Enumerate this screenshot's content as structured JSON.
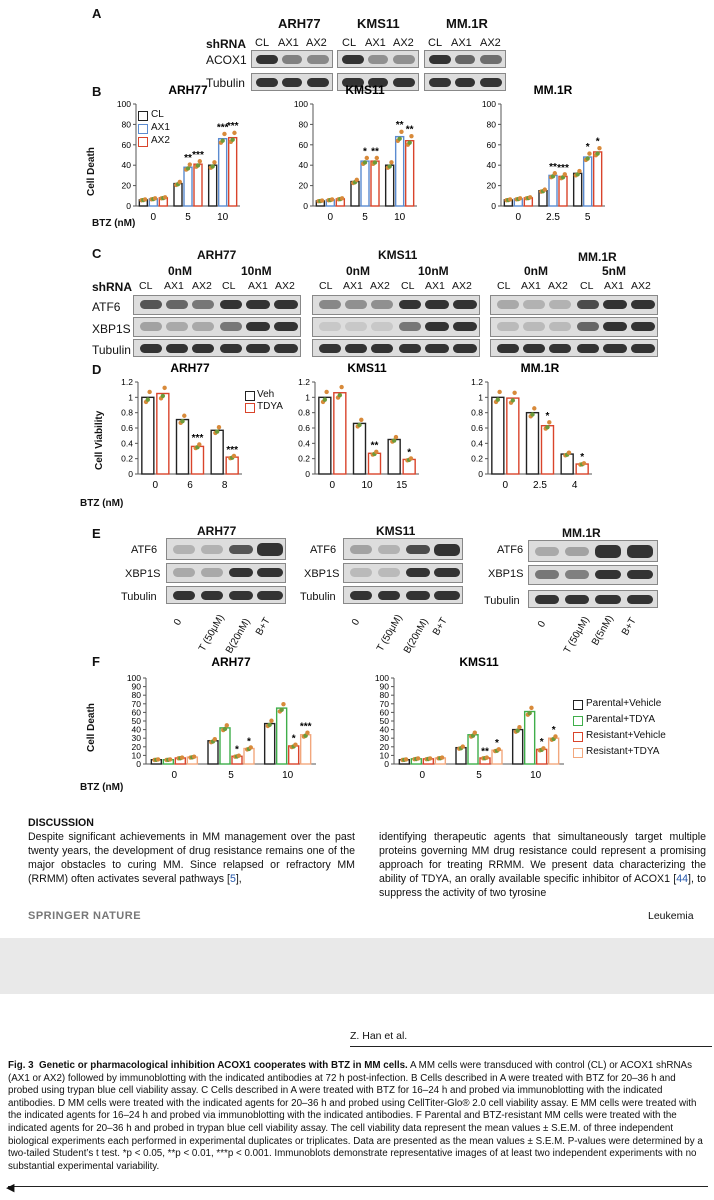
{
  "panelA": {
    "letter": "A",
    "cells": [
      "ARH77",
      "KMS11",
      "MM.1R"
    ],
    "shrna": "shRNA",
    "lanes": [
      "CL",
      "AX1",
      "AX2"
    ],
    "rows": [
      "ACOX1",
      "Tubulin"
    ]
  },
  "panelB": {
    "letter": "B",
    "xlabel": "BTZ (nM)",
    "ylabel": "Cell Death",
    "legend": [
      "CL",
      "AX1",
      "AX2"
    ]
  },
  "panelC": {
    "letter": "C",
    "cells": [
      "ARH77",
      "KMS11",
      "MM.1R"
    ],
    "shrna": "shRNA",
    "lanes": [
      "CL",
      "AX1",
      "AX2",
      "CL",
      "AX1",
      "AX2"
    ],
    "conc": [
      [
        "0nM",
        "10nM"
      ],
      [
        "0nM",
        "10nM"
      ],
      [
        "0nM",
        "5nM"
      ]
    ],
    "rows": [
      "ATF6",
      "XBP1S",
      "Tubulin"
    ]
  },
  "panelD": {
    "letter": "D",
    "xlabel": "BTZ (nM)",
    "ylabel": "Cell Viability",
    "legend": [
      "Veh",
      "TDYA"
    ]
  },
  "panelE": {
    "letter": "E",
    "cells": [
      "ARH77",
      "KMS11",
      "MM.1R"
    ],
    "rows": [
      "ATF6",
      "XBP1S",
      "Tubulin"
    ],
    "lanes": [
      [
        "0",
        "T (50μM)",
        "B(20nM)",
        "B+T"
      ],
      [
        "0",
        "T (50μM)",
        "B(20nM)",
        "B+T"
      ],
      [
        "0",
        "T (50μM)",
        "B(5nM)",
        "B+T"
      ]
    ]
  },
  "panelF": {
    "letter": "F",
    "xlabel": "BTZ (nM)",
    "ylabel": "Cell Death",
    "legend": [
      "Parental+Vehicle",
      "Parental+TDYA",
      "Resistant+Vehicle",
      "Resistant+TDYA"
    ]
  },
  "colors": {
    "black": "#222222",
    "blue": "#5b8bd0",
    "red": "#d9442b",
    "green": "#3fae4a",
    "peach": "#f2a77d",
    "dotGreen": "#6b9a3a",
    "dotOrange": "#d88a3a"
  },
  "chart_data": [
    {
      "id": "B-ARH77",
      "type": "bar",
      "title": "ARH77",
      "categories": [
        "0",
        "5",
        "10"
      ],
      "ylim": [
        0,
        100
      ],
      "yticks": [
        "0",
        "20",
        "40",
        "60",
        "80",
        "100"
      ],
      "series": [
        {
          "name": "CL",
          "values": [
            6,
            22,
            40
          ]
        },
        {
          "name": "AX1",
          "values": [
            7,
            38,
            66
          ]
        },
        {
          "name": "AX2",
          "values": [
            8,
            41,
            67
          ]
        }
      ],
      "labels": [
        [
          "",
          ""
        ],
        [
          "**",
          "***"
        ],
        [
          "***",
          "***"
        ]
      ]
    },
    {
      "id": "B-KMS11",
      "type": "bar",
      "title": "KMS11",
      "categories": [
        "0",
        "5",
        "10"
      ],
      "ylim": [
        0,
        100
      ],
      "yticks": [
        "0",
        "20",
        "40",
        "60",
        "80",
        "100"
      ],
      "series": [
        {
          "name": "CL",
          "values": [
            5,
            24,
            40
          ]
        },
        {
          "name": "AX1",
          "values": [
            6,
            44,
            68
          ]
        },
        {
          "name": "AX2",
          "values": [
            7,
            44,
            64
          ]
        }
      ],
      "labels": [
        [
          "",
          ""
        ],
        [
          "*",
          "**"
        ],
        [
          "**",
          "**"
        ]
      ]
    },
    {
      "id": "B-MM1R",
      "type": "bar",
      "title": "MM.1R",
      "categories": [
        "0",
        "2.5",
        "5"
      ],
      "ylim": [
        0,
        100
      ],
      "yticks": [
        "0",
        "20",
        "40",
        "60",
        "80",
        "100"
      ],
      "series": [
        {
          "name": "CL",
          "values": [
            6,
            15,
            32
          ]
        },
        {
          "name": "AX1",
          "values": [
            7,
            30,
            48
          ]
        },
        {
          "name": "AX2",
          "values": [
            8,
            29,
            53
          ]
        }
      ],
      "labels": [
        [
          "",
          ""
        ],
        [
          "**",
          "***"
        ],
        [
          "*",
          "*"
        ]
      ]
    },
    {
      "id": "D-ARH77",
      "type": "bar",
      "title": "ARH77",
      "categories": [
        "0",
        "6",
        "8"
      ],
      "ylim": [
        0,
        1.2
      ],
      "yticks": [
        "0",
        "0.2",
        "0.4",
        "0.6",
        "0.8",
        "1",
        "1.2"
      ],
      "series": [
        {
          "name": "Veh",
          "values": [
            1.0,
            0.71,
            0.57
          ]
        },
        {
          "name": "TDYA",
          "values": [
            1.05,
            0.36,
            0.22
          ]
        }
      ],
      "labels": [
        [
          ""
        ],
        [
          "***"
        ],
        [
          "***"
        ]
      ]
    },
    {
      "id": "D-KMS11",
      "type": "bar",
      "title": "KMS11",
      "categories": [
        "0",
        "10",
        "15"
      ],
      "ylim": [
        0,
        1.2
      ],
      "yticks": [
        "0",
        "0.2",
        "0.4",
        "0.6",
        "0.8",
        "1",
        "1.2"
      ],
      "series": [
        {
          "name": "Veh",
          "values": [
            1.0,
            0.66,
            0.45
          ]
        },
        {
          "name": "TDYA",
          "values": [
            1.06,
            0.27,
            0.19
          ]
        }
      ],
      "labels": [
        [
          ""
        ],
        [
          "**"
        ],
        [
          "*"
        ]
      ]
    },
    {
      "id": "D-MM1R",
      "type": "bar",
      "title": "MM.1R",
      "categories": [
        "0",
        "2.5",
        "4"
      ],
      "ylim": [
        0,
        1.2
      ],
      "yticks": [
        "0",
        "0.2",
        "0.4",
        "0.6",
        "0.8",
        "1",
        "1.2"
      ],
      "series": [
        {
          "name": "Veh",
          "values": [
            1.0,
            0.8,
            0.26
          ]
        },
        {
          "name": "TDYA",
          "values": [
            0.99,
            0.63,
            0.13
          ]
        }
      ],
      "labels": [
        [
          ""
        ],
        [
          "*"
        ],
        [
          "*"
        ]
      ]
    },
    {
      "id": "F-ARH77",
      "type": "bar",
      "title": "ARH77",
      "categories": [
        "0",
        "5",
        "10"
      ],
      "ylim": [
        0,
        100
      ],
      "yticks": [
        "0",
        "10",
        "20",
        "30",
        "40",
        "50",
        "60",
        "70",
        "80",
        "90",
        "100"
      ],
      "series": [
        {
          "name": "Parental+Vehicle",
          "values": [
            5,
            27,
            47
          ]
        },
        {
          "name": "Parental+TDYA",
          "values": [
            5,
            42,
            65
          ]
        },
        {
          "name": "Resistant+Vehicle",
          "values": [
            7,
            9,
            21
          ]
        },
        {
          "name": "Resistant+TDYA",
          "values": [
            8,
            18,
            34
          ]
        }
      ],
      "labels": [
        [
          "",
          ""
        ],
        [
          "*",
          "*"
        ],
        [
          "*",
          "***"
        ]
      ]
    },
    {
      "id": "F-KMS11",
      "type": "bar",
      "title": "KMS11",
      "categories": [
        "0",
        "5",
        "10"
      ],
      "ylim": [
        0,
        100
      ],
      "yticks": [
        "0",
        "10",
        "20",
        "30",
        "40",
        "50",
        "60",
        "70",
        "80",
        "90",
        "100"
      ],
      "series": [
        {
          "name": "Parental+Vehicle",
          "values": [
            5,
            19,
            40
          ]
        },
        {
          "name": "Parental+TDYA",
          "values": [
            6,
            34,
            61
          ]
        },
        {
          "name": "Resistant+Vehicle",
          "values": [
            6,
            7,
            17
          ]
        },
        {
          "name": "Resistant+TDYA",
          "values": [
            7,
            16,
            30
          ]
        }
      ],
      "labels": [
        [
          "",
          ""
        ],
        [
          "**",
          "*"
        ],
        [
          "*",
          "*"
        ]
      ]
    }
  ],
  "discussion": {
    "heading": "DISCUSSION",
    "col1_a": "Despite significant achievements in MM management over the past twenty years, the development of drug resistance remains one of the major obstacles to curing MM. Since relapsed or refractory MM (RRMM) often activates several pathways [",
    "col1_ref": "5",
    "col1_b": "],",
    "col2_a": "identifying therapeutic agents that simultaneously target multiple proteins governing MM drug resistance could represent a promising approach for treating RRMM. We present data characterizing the ability of TDYA, an orally available specific inhibitor of ACOX1 [",
    "col2_ref": "44",
    "col2_b": "], to suppress the activity of two tyrosine"
  },
  "footer": {
    "publisher": "SPRINGER NATURE",
    "journal": "Leukemia"
  },
  "header2": {
    "authors": "Z. Han et al."
  },
  "caption": {
    "fig": "Fig. 3",
    "title": "Genetic or pharmacological inhibition ACOX1 cooperates with BTZ in MM cells.",
    "body": " A MM cells were transduced with control (CL) or ACOX1 shRNAs (AX1 or AX2) followed by immunoblotting with the indicated antibodies at 72 h post-infection. B Cells described in A were treated with BTZ for 20–36 h and probed using trypan blue cell viability assay. C Cells described in A were treated with BTZ for 16–24 h and probed via immunoblotting with the indicated antibodies. D MM cells were treated with the indicated agents for 20–36 h and probed using CellTiter-Glo® 2.0 cell viability assay. E MM cells were treated with the indicated agents for 16–24 h and probed via immunoblotting with the indicated antibodies. F Parental and BTZ-resistant MM cells were treated with the indicated agents for 20–36 h and probed in trypan blue cell viability assay. The cell viability data represent the mean values ± S.E.M. of three independent biological experiments each performed in experimental duplicates or triplicates. Data are presented as the mean values ± S.E.M. P-values were determined by a two-tailed Student’s t test. *p < 0.05, **p < 0.01, ***p < 0.001. Immunoblots demonstrate representative images of at least two independent experiments with no substantial experimental variability."
  }
}
